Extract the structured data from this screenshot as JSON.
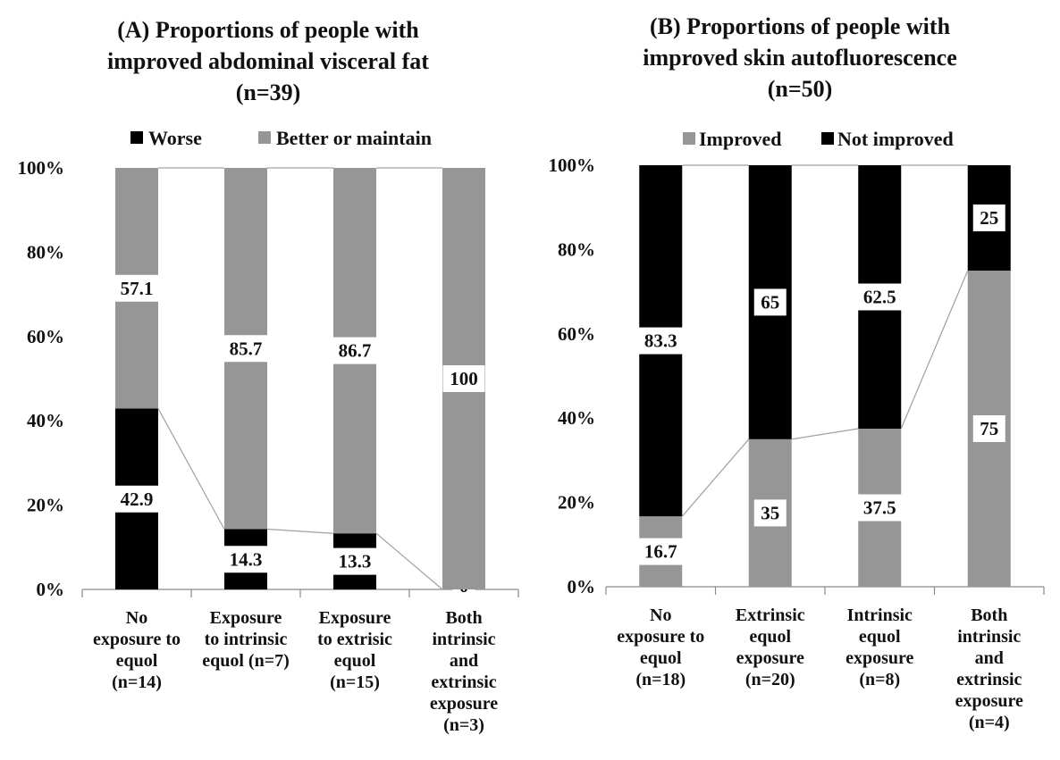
{
  "chart_data": [
    {
      "type": "bar",
      "stacked": true,
      "title_lines": [
        "(A) Proportions of people with",
        "improved abdominal visceral fat",
        "(n=39)"
      ],
      "categories": [
        [
          "No",
          "exposure to",
          "equol",
          "(n=14)"
        ],
        [
          "Exposure",
          "to intrinsic",
          "equol (n=7)"
        ],
        [
          "Exposure",
          "to extrisic",
          "equol",
          "(n=15)"
        ],
        [
          "Both",
          "intrinsic",
          "and",
          "extrinsic",
          "exposure",
          "(n=3)"
        ]
      ],
      "series": [
        {
          "name": "Worse",
          "color": "#000000",
          "values": [
            42.9,
            14.3,
            13.3,
            0
          ],
          "labels": [
            "42.9",
            "14.3",
            "13.3",
            "0"
          ]
        },
        {
          "name": "Better or maintain",
          "color": "#969696",
          "values": [
            57.1,
            85.7,
            86.7,
            100
          ],
          "labels": [
            "57.1",
            "85.7",
            "86.7",
            "100"
          ]
        }
      ],
      "connector_series": 0,
      "legend": [
        {
          "name": "Worse",
          "color": "#000000"
        },
        {
          "name": "Better or maintain",
          "color": "#969696"
        }
      ],
      "yticks": [
        "0%",
        "20%",
        "40%",
        "60%",
        "80%",
        "100%"
      ],
      "ylim": [
        0,
        100
      ]
    },
    {
      "type": "bar",
      "stacked": true,
      "title_lines": [
        "(B) Proportions of people with",
        "improved skin autofluorescence",
        "(n=50)"
      ],
      "categories": [
        [
          "No",
          "exposure to",
          "equol",
          "(n=18)"
        ],
        [
          "Extrinsic",
          "equol",
          "exposure",
          "(n=20)"
        ],
        [
          "Intrinsic",
          "equol",
          "exposure",
          "(n=8)"
        ],
        [
          "Both",
          "intrinsic",
          "and",
          "extrinsic",
          "exposure",
          "(n=4)"
        ]
      ],
      "series": [
        {
          "name": "Improved",
          "color": "#969696",
          "values": [
            16.7,
            35,
            37.5,
            75
          ],
          "labels": [
            "16.7",
            "35",
            "37.5",
            "75"
          ]
        },
        {
          "name": "Not improved",
          "color": "#000000",
          "values": [
            83.3,
            65,
            62.5,
            25
          ],
          "labels": [
            "83.3",
            "65",
            "62.5",
            "25"
          ]
        }
      ],
      "connector_series": 0,
      "legend": [
        {
          "name": "Improved",
          "color": "#969696"
        },
        {
          "name": "Not improved",
          "color": "#000000"
        }
      ],
      "yticks": [
        "0%",
        "20%",
        "40%",
        "60%",
        "80%",
        "100%"
      ],
      "ylim": [
        0,
        100
      ]
    }
  ]
}
